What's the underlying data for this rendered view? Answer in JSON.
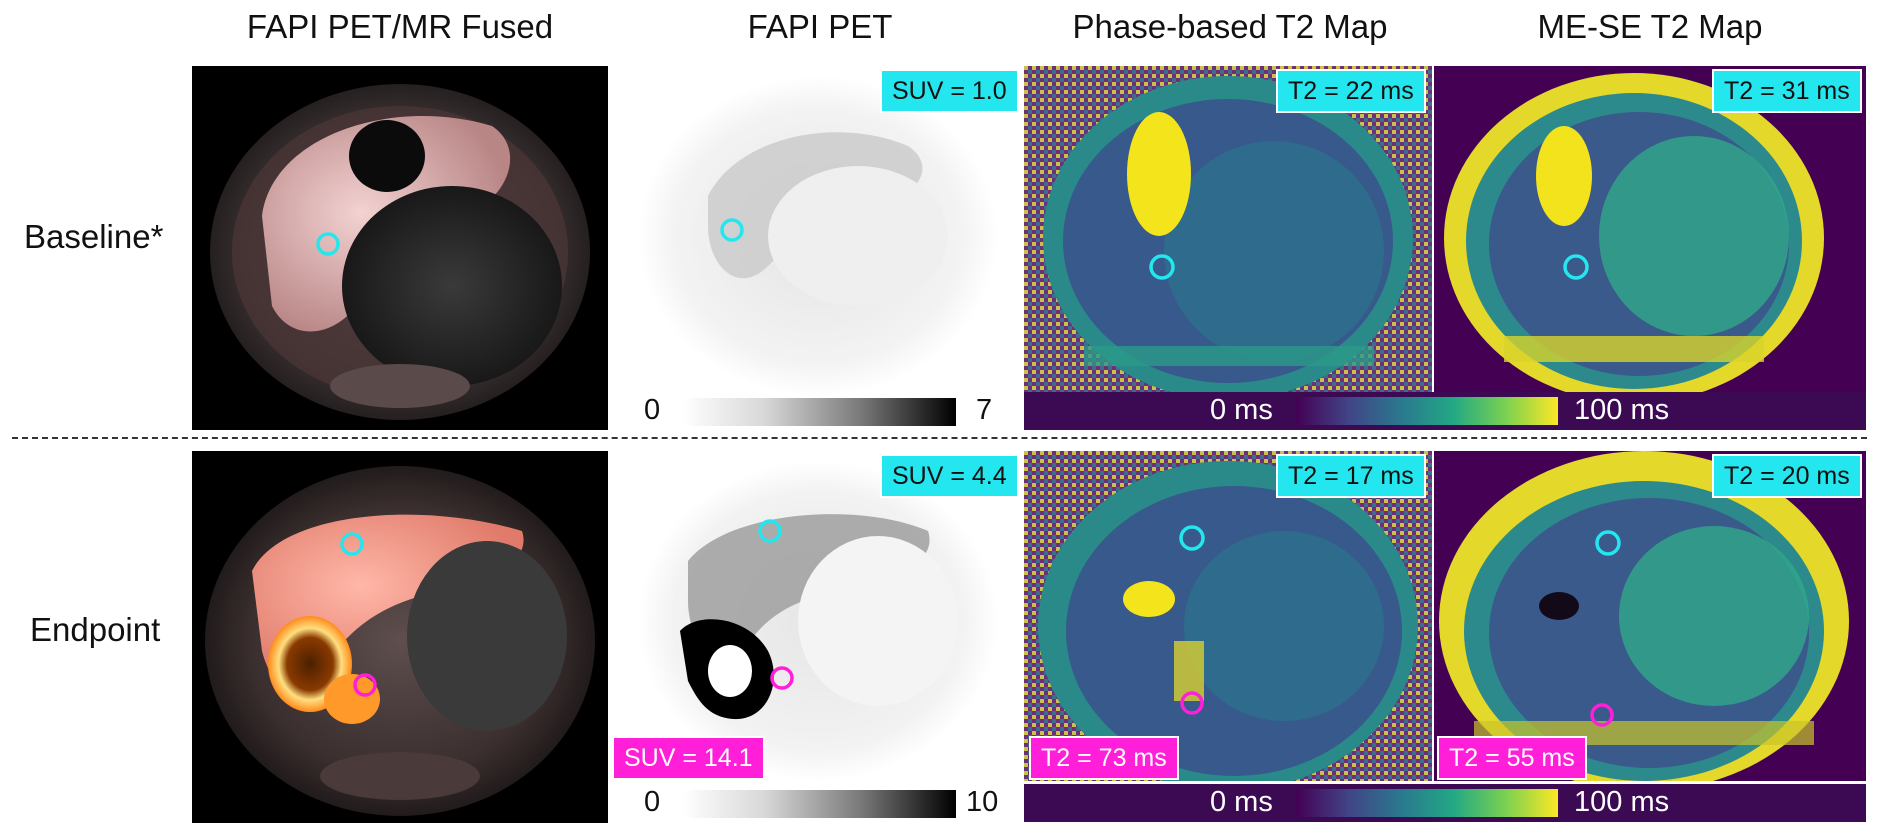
{
  "columns": {
    "fused": "FAPI PET/MR Fused",
    "pet": "FAPI PET",
    "phase": "Phase-based T2 Map",
    "mese": "ME-SE T2 Map"
  },
  "rows": {
    "baseline": {
      "label": "Baseline*",
      "pet_suv_cyan": "SUV = 1.0",
      "phase_t2_cyan": "T2 = 22 ms",
      "mese_t2_cyan": "T2 = 31 ms",
      "pet_scale": {
        "min": "0",
        "max": "7"
      },
      "t2_scale": {
        "min": "0 ms",
        "max": "100 ms"
      }
    },
    "endpoint": {
      "label": "Endpoint",
      "pet_suv_cyan": "SUV = 4.4",
      "pet_suv_magenta": "SUV = 14.1",
      "phase_t2_cyan": "T2 = 17 ms",
      "phase_t2_magenta": "T2 = 73 ms",
      "mese_t2_cyan": "T2 = 20 ms",
      "mese_t2_magenta": "T2 = 55 ms",
      "pet_scale": {
        "min": "0",
        "max": "10"
      },
      "t2_scale": {
        "min": "0 ms",
        "max": "100 ms"
      }
    }
  },
  "colors": {
    "roi_cyan": "#24e6ee",
    "roi_magenta": "#ff1fd8",
    "t2_background": "#3c0a52",
    "viridis_low": "#440154",
    "viridis_high": "#fde725"
  }
}
